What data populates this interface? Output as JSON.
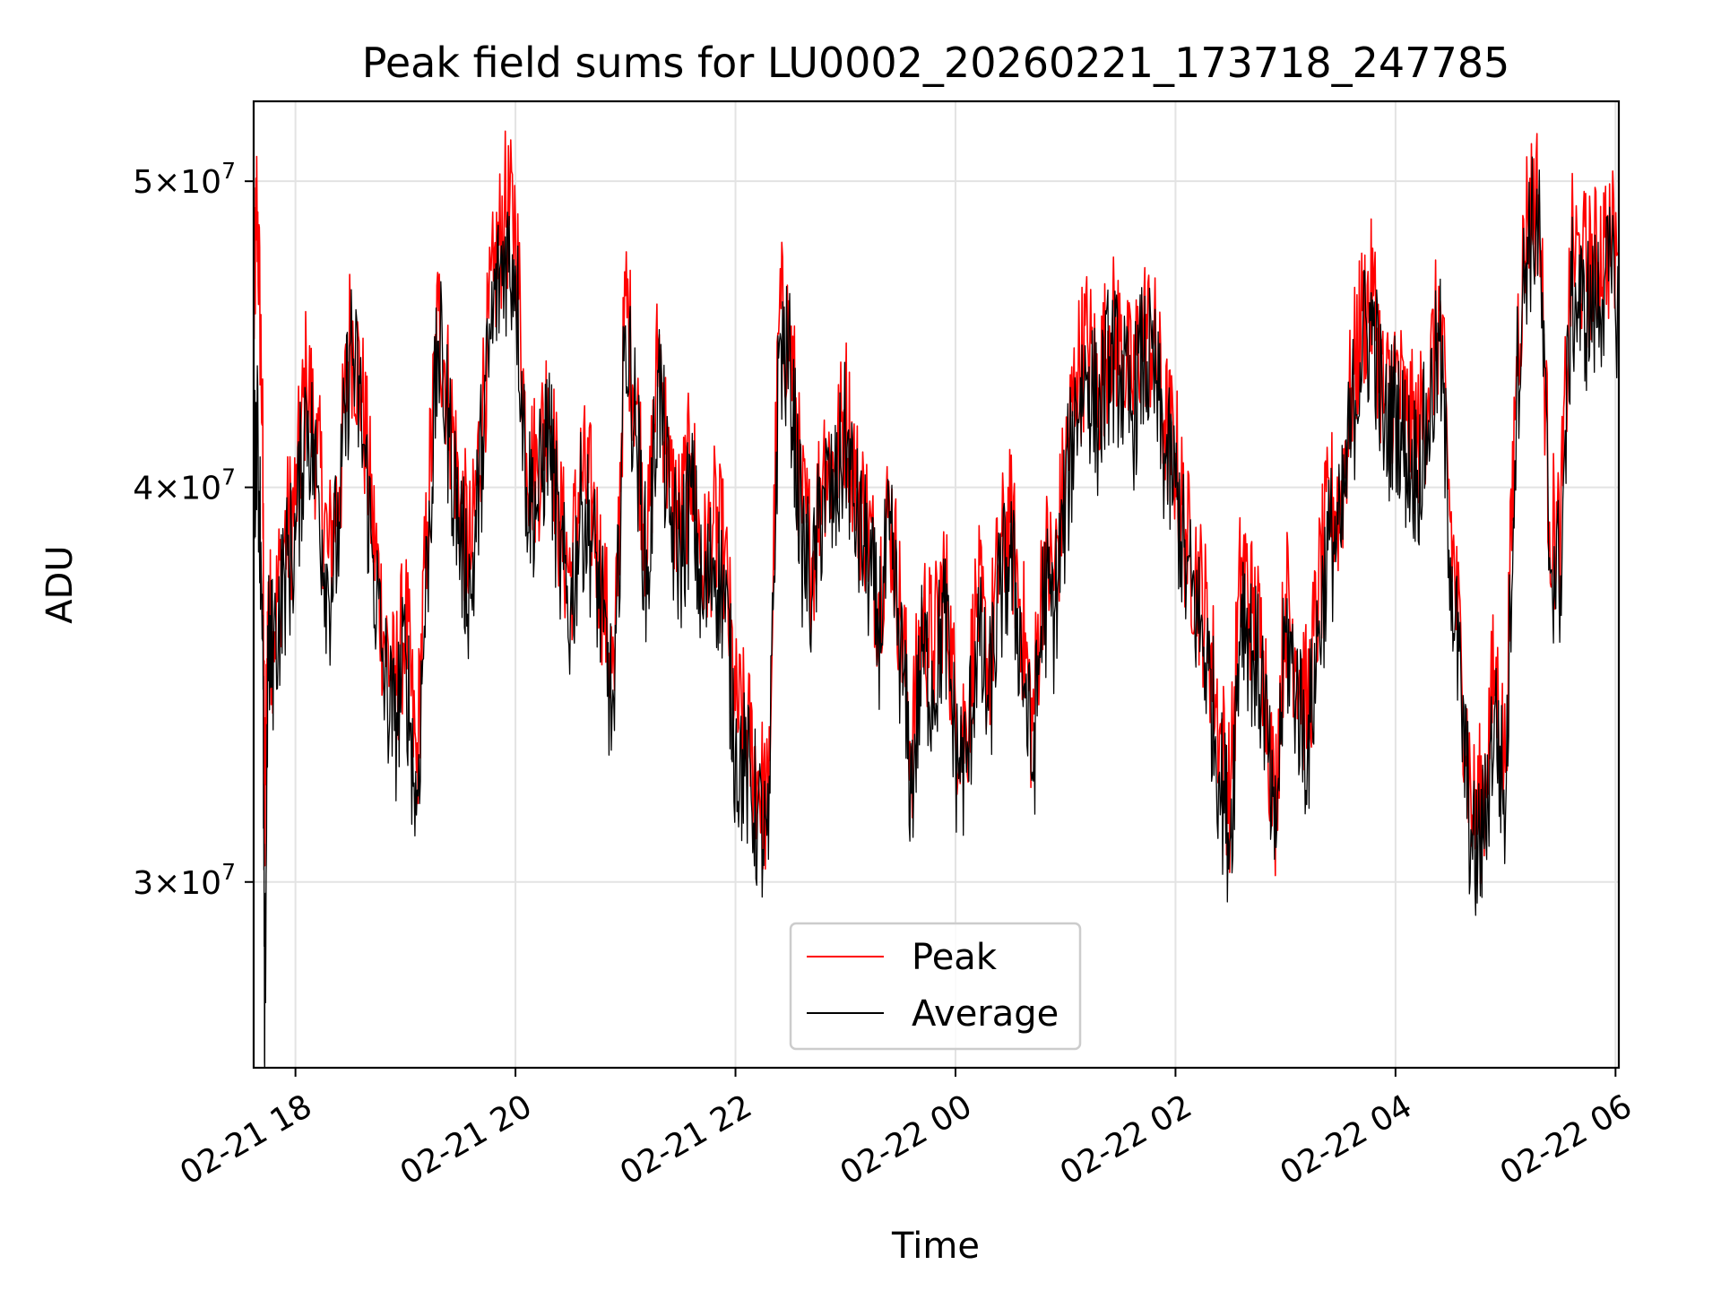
{
  "chart_data": {
    "type": "line",
    "title": "Peak field sums for LU0002_20260221_173718_247785",
    "xlabel": "Time",
    "ylabel": "ADU",
    "yscale": "log",
    "ylim": [
      26200000,
      53000000
    ],
    "xlim_hours": [
      17.62,
      30.03
    ],
    "grid": true,
    "legend_position": "lower-center",
    "x_ticks": [
      {
        "label": "02-21 18",
        "hour": 18
      },
      {
        "label": "02-21 20",
        "hour": 20
      },
      {
        "label": "02-21 22",
        "hour": 22
      },
      {
        "label": "02-22 00",
        "hour": 24
      },
      {
        "label": "02-22 02",
        "hour": 26
      },
      {
        "label": "02-22 04",
        "hour": 28
      },
      {
        "label": "02-22 06",
        "hour": 30
      }
    ],
    "y_ticks": [
      {
        "mantissa": "3",
        "base": "10",
        "exp": "7",
        "value": 30000000
      },
      {
        "mantissa": "4",
        "base": "10",
        "exp": "7",
        "value": 40000000
      },
      {
        "mantissa": "5",
        "base": "10",
        "exp": "7",
        "value": 50000000
      }
    ],
    "series": [
      {
        "name": "Peak",
        "color": "#ff0000",
        "x_hours": [
          17.62,
          17.65,
          17.7,
          17.72,
          17.75,
          17.8,
          17.9,
          18.0,
          18.1,
          18.2,
          18.3,
          18.4,
          18.5,
          18.6,
          18.7,
          18.8,
          18.9,
          19.0,
          19.1,
          19.2,
          19.3,
          19.4,
          19.5,
          19.6,
          19.7,
          19.8,
          19.9,
          20.0,
          20.1,
          20.2,
          20.3,
          20.4,
          20.5,
          20.6,
          20.7,
          20.8,
          20.9,
          21.0,
          21.1,
          21.2,
          21.3,
          21.4,
          21.5,
          21.6,
          21.7,
          21.8,
          21.9,
          22.0,
          22.1,
          22.2,
          22.3,
          22.4,
          22.5,
          22.6,
          22.7,
          22.8,
          22.9,
          23.0,
          23.1,
          23.2,
          23.3,
          23.4,
          23.5,
          23.6,
          23.7,
          23.8,
          23.9,
          24.0,
          24.1,
          24.2,
          24.3,
          24.4,
          24.5,
          24.6,
          24.7,
          24.8,
          24.9,
          25.0,
          25.1,
          25.2,
          25.3,
          25.4,
          25.5,
          25.6,
          25.7,
          25.8,
          25.9,
          26.0,
          26.1,
          26.2,
          26.3,
          26.4,
          26.5,
          26.6,
          26.7,
          26.8,
          26.9,
          27.0,
          27.1,
          27.2,
          27.3,
          27.4,
          27.5,
          27.6,
          27.7,
          27.8,
          27.9,
          28.0,
          28.1,
          28.2,
          28.3,
          28.4,
          28.5,
          28.6,
          28.7,
          28.8,
          28.9,
          29.0,
          29.1,
          29.2,
          29.3,
          29.4,
          29.5,
          29.6,
          29.7,
          29.8,
          29.9,
          30.03
        ],
        "values": [
          45000000,
          49500000,
          42000000,
          31000000,
          36500000,
          36000000,
          38500000,
          39500000,
          43500000,
          41000000,
          38000000,
          40000000,
          45000000,
          43000000,
          39000000,
          36000000,
          34500000,
          36500000,
          32500000,
          39000000,
          45500000,
          42500000,
          39500000,
          38000000,
          42500000,
          46500000,
          49000000,
          48500000,
          41000000,
          40500000,
          43000000,
          39000000,
          37500000,
          40500000,
          39500000,
          37000000,
          34500000,
          46000000,
          42500000,
          38000000,
          44500000,
          40000000,
          39000000,
          41000000,
          37500000,
          39000000,
          38000000,
          34000000,
          33500000,
          32500000,
          31500000,
          45500000,
          44500000,
          39500000,
          38000000,
          41000000,
          40500000,
          42500000,
          40000000,
          39000000,
          37000000,
          39500000,
          36500000,
          33000000,
          36500000,
          35500000,
          37500000,
          34000000,
          33500000,
          37000000,
          35000000,
          38000000,
          39000000,
          36500000,
          33500000,
          38000000,
          37500000,
          40500000,
          43500000,
          44500000,
          43000000,
          45000000,
          44500000,
          43000000,
          45000000,
          44500000,
          42000000,
          41000000,
          38500000,
          37500000,
          36000000,
          33500000,
          32000000,
          38000000,
          36500000,
          35500000,
          31500000,
          37000000,
          35500000,
          34000000,
          37000000,
          39500000,
          39500000,
          43000000,
          45500000,
          46000000,
          42500000,
          43500000,
          42000000,
          41500000,
          43000000,
          45500000,
          39000000,
          35000000,
          31500000,
          32000000,
          35000000,
          32500000,
          44000000,
          49000000,
          49500000,
          39000000,
          38500000,
          47500000,
          47000000,
          47000000,
          48000000,
          47500000
        ]
      },
      {
        "name": "Average",
        "color": "#000000",
        "x_hours": [
          17.62,
          17.65,
          17.7,
          17.72,
          17.75,
          17.8,
          17.9,
          18.0,
          18.1,
          18.2,
          18.3,
          18.4,
          18.5,
          18.6,
          18.7,
          18.8,
          18.9,
          19.0,
          19.1,
          19.2,
          19.3,
          19.4,
          19.5,
          19.6,
          19.7,
          19.8,
          19.9,
          20.0,
          20.1,
          20.2,
          20.3,
          20.4,
          20.5,
          20.6,
          20.7,
          20.8,
          20.9,
          21.0,
          21.1,
          21.2,
          21.3,
          21.4,
          21.5,
          21.6,
          21.7,
          21.8,
          21.9,
          22.0,
          22.1,
          22.2,
          22.3,
          22.4,
          22.5,
          22.6,
          22.7,
          22.8,
          22.9,
          23.0,
          23.1,
          23.2,
          23.3,
          23.4,
          23.5,
          23.6,
          23.7,
          23.8,
          23.9,
          24.0,
          24.1,
          24.2,
          24.3,
          24.4,
          24.5,
          24.6,
          24.7,
          24.8,
          24.9,
          25.0,
          25.1,
          25.2,
          25.3,
          25.4,
          25.5,
          25.6,
          25.7,
          25.8,
          25.9,
          26.0,
          26.1,
          26.2,
          26.3,
          26.4,
          26.5,
          26.6,
          26.7,
          26.8,
          26.9,
          27.0,
          27.1,
          27.2,
          27.3,
          27.4,
          27.5,
          27.6,
          27.7,
          27.8,
          27.9,
          28.0,
          28.1,
          28.2,
          28.3,
          28.4,
          28.5,
          28.6,
          28.7,
          28.8,
          28.9,
          29.0,
          29.1,
          29.2,
          29.3,
          29.4,
          29.5,
          29.6,
          29.7,
          29.8,
          29.9,
          30.03
        ],
        "values": [
          40000000,
          42000000,
          37000000,
          26200000,
          35500000,
          35500000,
          37500000,
          38500000,
          42500000,
          40000000,
          37000000,
          39000000,
          44500000,
          42000000,
          38000000,
          35000000,
          33500000,
          35500000,
          31500000,
          38000000,
          44500000,
          41500000,
          38500000,
          37000000,
          41500000,
          45500000,
          47500000,
          47000000,
          40000000,
          39500000,
          42000000,
          38000000,
          36500000,
          39500000,
          38500000,
          36000000,
          33500000,
          45000000,
          41500000,
          37000000,
          43500000,
          39000000,
          38000000,
          40000000,
          36500000,
          38000000,
          37000000,
          33000000,
          32500000,
          31500000,
          30500000,
          44500000,
          43500000,
          38500000,
          37000000,
          40000000,
          39500000,
          41500000,
          39000000,
          38000000,
          36000000,
          38500000,
          35500000,
          32000000,
          35500000,
          34500000,
          36500000,
          33000000,
          32500000,
          36000000,
          34000000,
          37000000,
          38000000,
          35500000,
          32500000,
          37000000,
          36500000,
          39500000,
          42500000,
          43500000,
          42000000,
          44000000,
          43500000,
          42000000,
          44000000,
          43500000,
          41000000,
          40000000,
          37500000,
          36500000,
          35000000,
          32500000,
          31000000,
          37000000,
          35500000,
          34500000,
          30500000,
          36000000,
          34500000,
          33000000,
          36000000,
          38500000,
          38500000,
          42000000,
          44500000,
          45000000,
          41500000,
          42500000,
          41000000,
          40500000,
          42000000,
          44500000,
          38000000,
          34000000,
          30500000,
          31000000,
          34000000,
          31500000,
          43000000,
          48000000,
          48500000,
          38000000,
          37500000,
          46000000,
          45500000,
          45500000,
          46500000,
          46000000
        ]
      }
    ]
  }
}
